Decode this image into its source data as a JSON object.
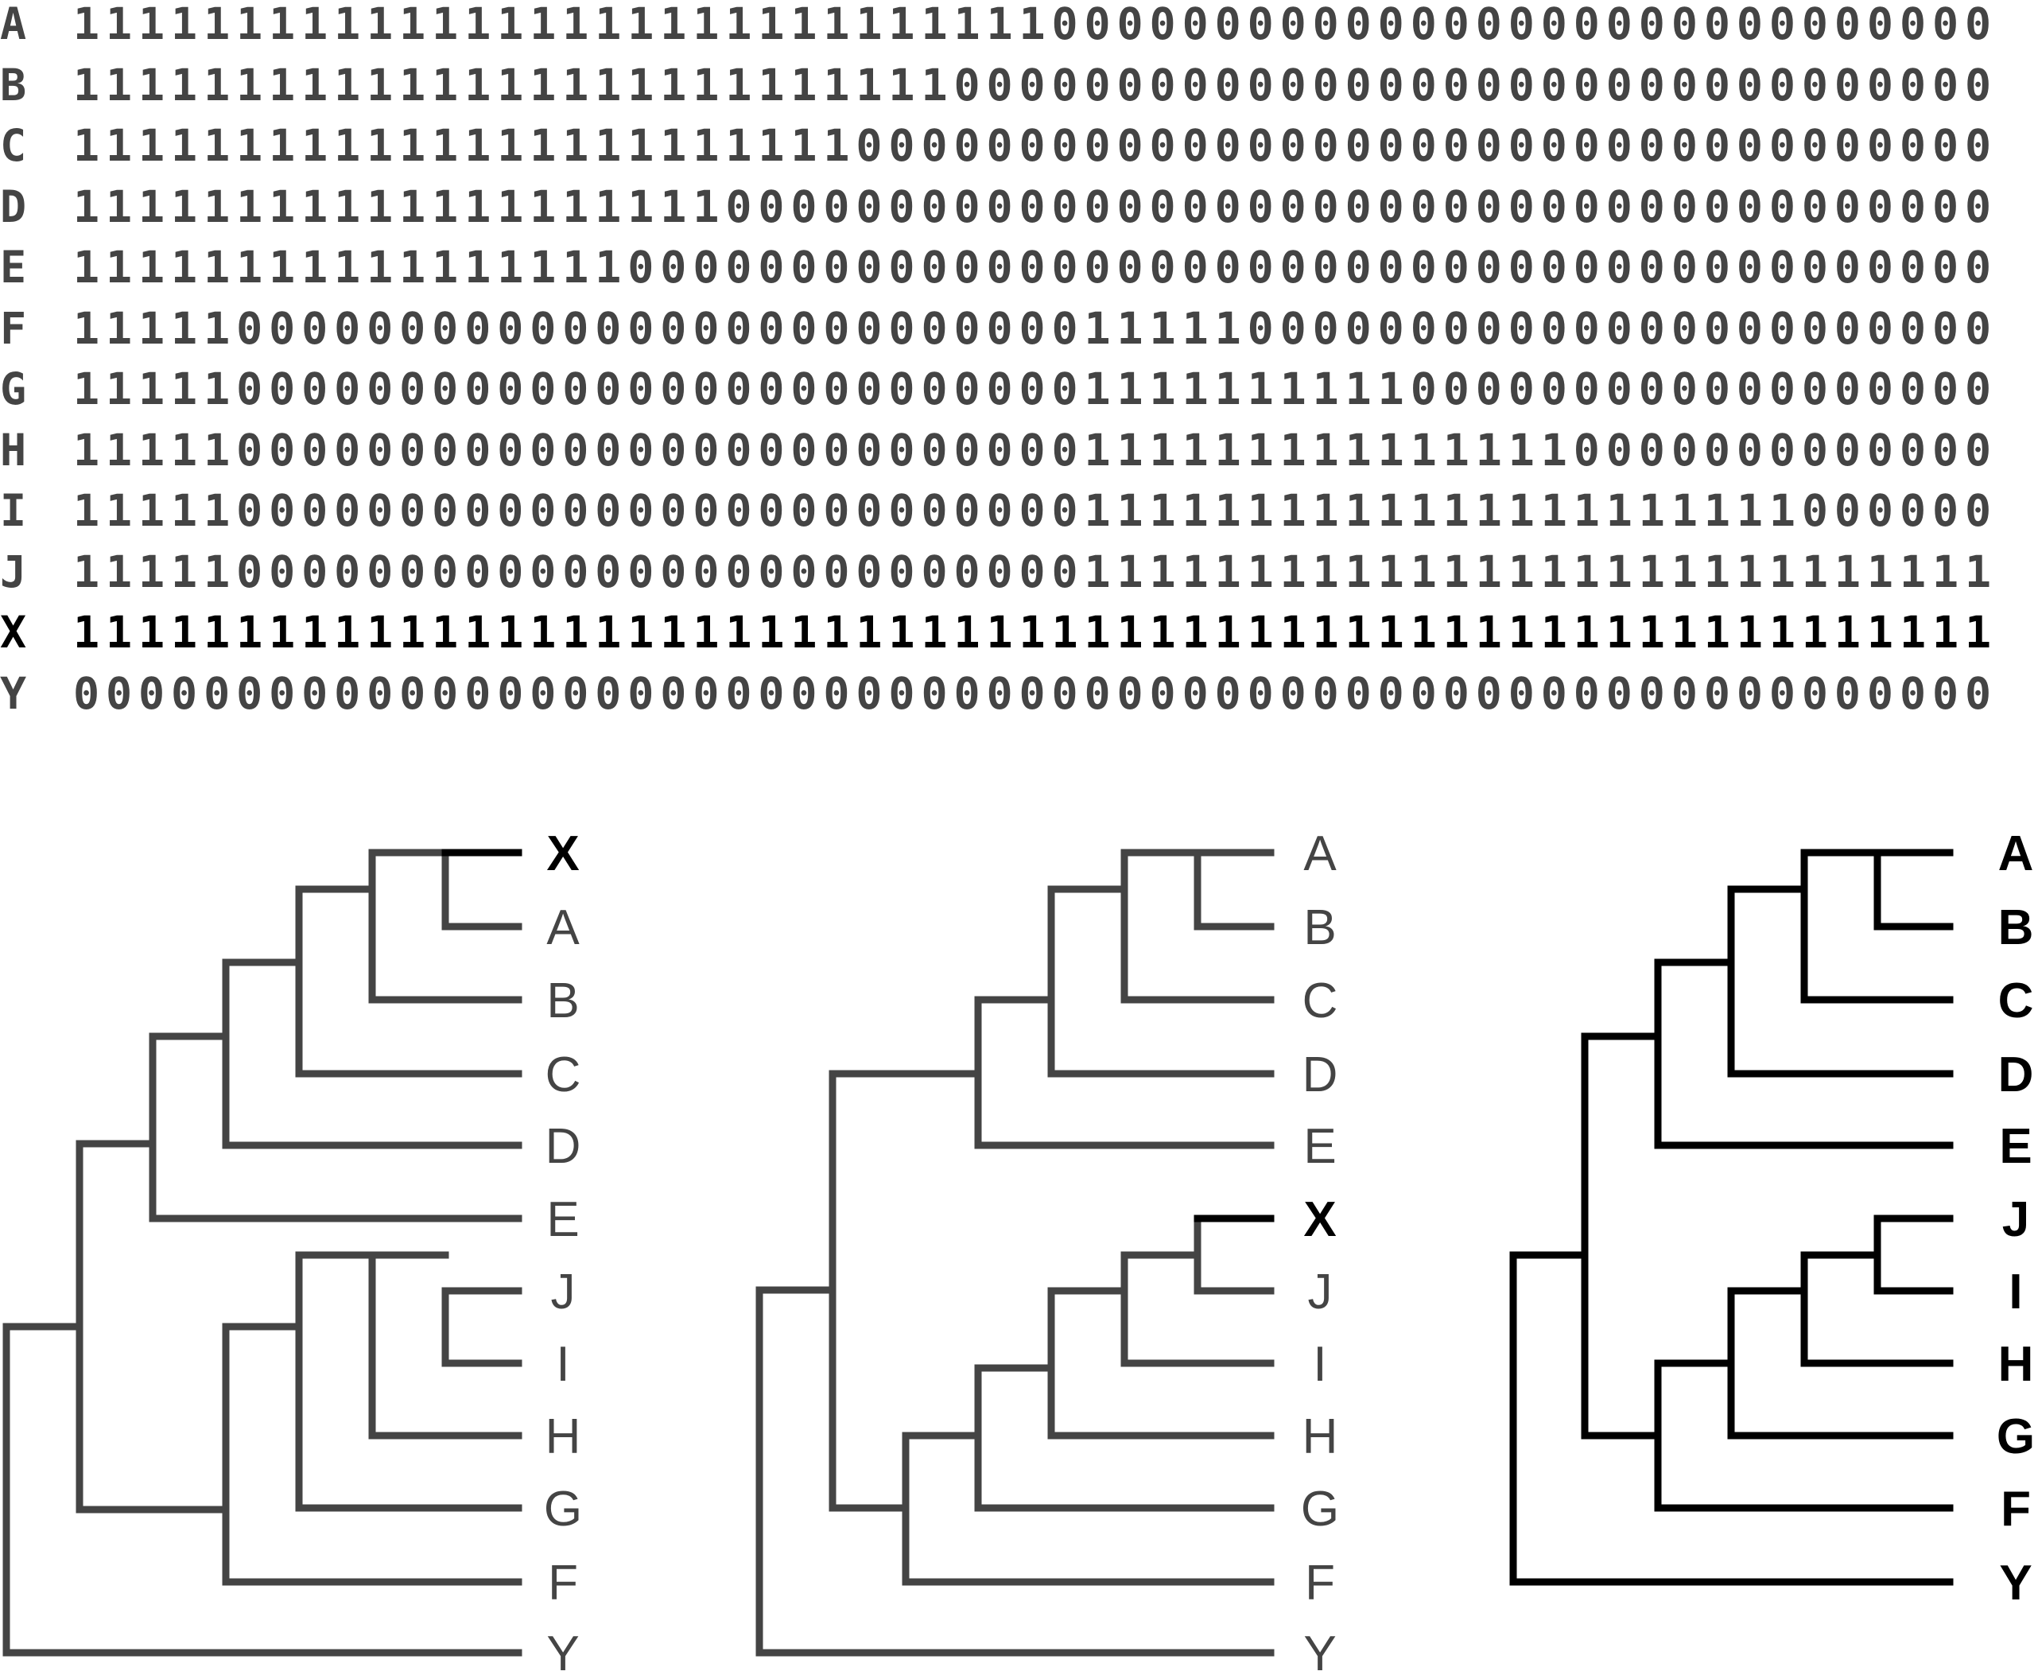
{
  "matrix": {
    "rows": [
      {
        "label": "A",
        "bits": "11111111111111111111111111111100000000000000000000000000000",
        "highlight": false
      },
      {
        "label": "B",
        "bits": "11111111111111111111111111100000000000000000000000000000000",
        "highlight": false
      },
      {
        "label": "C",
        "bits": "11111111111111111111111100000000000000000000000000000000000",
        "highlight": false
      },
      {
        "label": "D",
        "bits": "11111111111111111111000000000000000000000000000000000000000",
        "highlight": false
      },
      {
        "label": "E",
        "bits": "11111111111111111000000000000000000000000000000000000000000",
        "highlight": false
      },
      {
        "label": "F",
        "bits": "11111000000000000000000000000001111100000000000000000000000",
        "highlight": false
      },
      {
        "label": "G",
        "bits": "11111000000000000000000000000001111111111000000000000000000",
        "highlight": false
      },
      {
        "label": "H",
        "bits": "11111000000000000000000000000001111111111111110000000000000",
        "highlight": false
      },
      {
        "label": "I",
        "bits": "11111000000000000000000000000001111111111111111111111000000",
        "highlight": false
      },
      {
        "label": "J",
        "bits": "11111000000000000000000000000001111111111111111111111111111",
        "highlight": false
      },
      {
        "label": "X",
        "bits": "11111111111111111111111111111111111111111111111111111111111",
        "highlight": true
      },
      {
        "label": "Y",
        "bits": "00000000000000000000000000000000000000000000000000000000000",
        "highlight": false
      }
    ]
  },
  "trees": [
    {
      "id": "tree-1",
      "line_color": "#444444",
      "highlight_leaf": "X",
      "leaves": [
        "X",
        "A",
        "B",
        "C",
        "D",
        "E",
        "J",
        "I",
        "H",
        "G",
        "F",
        "Y"
      ]
    },
    {
      "id": "tree-2",
      "line_color": "#444444",
      "highlight_leaf": "X",
      "leaves": [
        "A",
        "B",
        "C",
        "D",
        "E",
        "X",
        "J",
        "I",
        "H",
        "G",
        "F",
        "Y"
      ]
    },
    {
      "id": "tree-3",
      "line_color": "#000000",
      "highlight_leaf": "",
      "leaves": [
        "A",
        "B",
        "C",
        "D",
        "E",
        "J",
        "I",
        "H",
        "G",
        "F",
        "Y"
      ]
    }
  ]
}
